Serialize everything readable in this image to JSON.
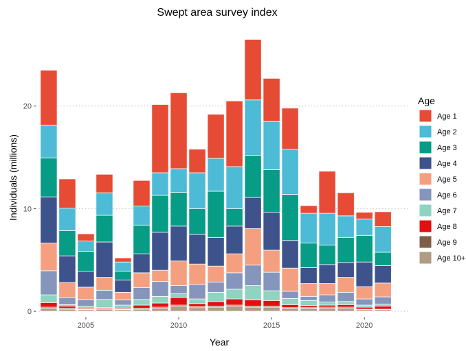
{
  "chart_data": {
    "type": "bar",
    "stacked": true,
    "title": "Swept area survey index",
    "xlabel": "Year",
    "ylabel": "Individuals (millions)",
    "xlim": [
      2002.3,
      2022.4
    ],
    "ylim": [
      -0.6,
      28
    ],
    "x_ticks": [
      2005,
      2010,
      2015,
      2020
    ],
    "x_tick_labels": [
      "2005",
      "2010",
      "2015",
      "2020"
    ],
    "y_ticks": [
      0,
      10,
      20
    ],
    "y_tick_labels": [
      "0",
      "10",
      "20"
    ],
    "grid": "horizontal dotted at y ticks",
    "legend": {
      "title": "Age",
      "placement": "right"
    },
    "years": [
      2003,
      2004,
      2005,
      2006,
      2007,
      2008,
      2009,
      2010,
      2011,
      2012,
      2013,
      2014,
      2015,
      2016,
      2017,
      2018,
      2019,
      2020,
      2021
    ],
    "series": [
      {
        "name": "Age 10+",
        "color": "#b09b84",
        "values": [
          0.3,
          0.2,
          0.15,
          0.2,
          0.15,
          0.2,
          0.3,
          0.5,
          0.35,
          0.4,
          0.5,
          0.4,
          0.4,
          0.25,
          0.3,
          0.3,
          0.3,
          0.15,
          0.15
        ]
      },
      {
        "name": "Age 9",
        "color": "#7e5d49",
        "values": [
          0.1,
          0.1,
          0.05,
          0.05,
          0.05,
          0.1,
          0.1,
          0.1,
          0.1,
          0.1,
          0.1,
          0.1,
          0.1,
          0.1,
          0.05,
          0.1,
          0.1,
          0.05,
          0.05
        ]
      },
      {
        "name": "Age 8",
        "color": "#e30f0f",
        "values": [
          0.45,
          0.2,
          0.1,
          0.1,
          0.1,
          0.3,
          0.4,
          0.75,
          0.3,
          0.45,
          0.6,
          0.6,
          0.55,
          0.3,
          0.2,
          0.2,
          0.25,
          0.2,
          0.3
        ]
      },
      {
        "name": "Age 7",
        "color": "#8fd3c0",
        "values": [
          0.75,
          0.15,
          0.2,
          0.8,
          0.3,
          0.55,
          0.65,
          0.35,
          0.45,
          0.9,
          0.95,
          1.4,
          0.95,
          0.6,
          0.5,
          0.3,
          0.3,
          0.2,
          0.2
        ]
      },
      {
        "name": "Age 6",
        "color": "#8595bc",
        "values": [
          2.35,
          0.7,
          0.65,
          0.9,
          0.5,
          1.15,
          1.45,
          0.8,
          1.4,
          1.0,
          1.6,
          2.0,
          1.8,
          0.7,
          0.4,
          0.7,
          0.9,
          0.6,
          0.7
        ]
      },
      {
        "name": "Age 5",
        "color": "#f4a080",
        "values": [
          2.7,
          1.45,
          1.2,
          1.25,
          0.75,
          1.45,
          1.1,
          2.4,
          2.0,
          1.55,
          1.85,
          3.55,
          2.15,
          2.25,
          1.25,
          1.1,
          1.45,
          1.2,
          1.35
        ]
      },
      {
        "name": "Age 4",
        "color": "#3e528b",
        "values": [
          4.5,
          2.6,
          1.55,
          3.45,
          1.2,
          1.85,
          3.7,
          3.4,
          2.9,
          2.8,
          2.7,
          3.05,
          3.7,
          2.7,
          1.55,
          1.85,
          1.45,
          2.4,
          1.7
        ]
      },
      {
        "name": "Age 3",
        "color": "#079c85",
        "values": [
          3.8,
          2.45,
          1.95,
          2.6,
          0.85,
          2.8,
          3.6,
          3.3,
          2.5,
          4.5,
          1.7,
          4.1,
          4.15,
          4.5,
          2.4,
          1.9,
          2.45,
          2.6,
          1.3
        ]
      },
      {
        "name": "Age 2",
        "color": "#4dbbd6",
        "values": [
          3.2,
          2.2,
          1.0,
          2.2,
          0.9,
          1.85,
          2.2,
          2.3,
          3.5,
          3.2,
          4.1,
          5.4,
          4.7,
          4.4,
          2.9,
          3.1,
          2.1,
          1.6,
          2.5
        ]
      },
      {
        "name": "Age 1",
        "color": "#e64b35",
        "values": [
          5.35,
          2.85,
          0.7,
          1.8,
          0.4,
          2.5,
          6.65,
          7.4,
          2.3,
          4.3,
          6.4,
          5.9,
          4.2,
          4.0,
          0.75,
          4.1,
          2.25,
          0.65,
          1.45
        ]
      }
    ]
  }
}
